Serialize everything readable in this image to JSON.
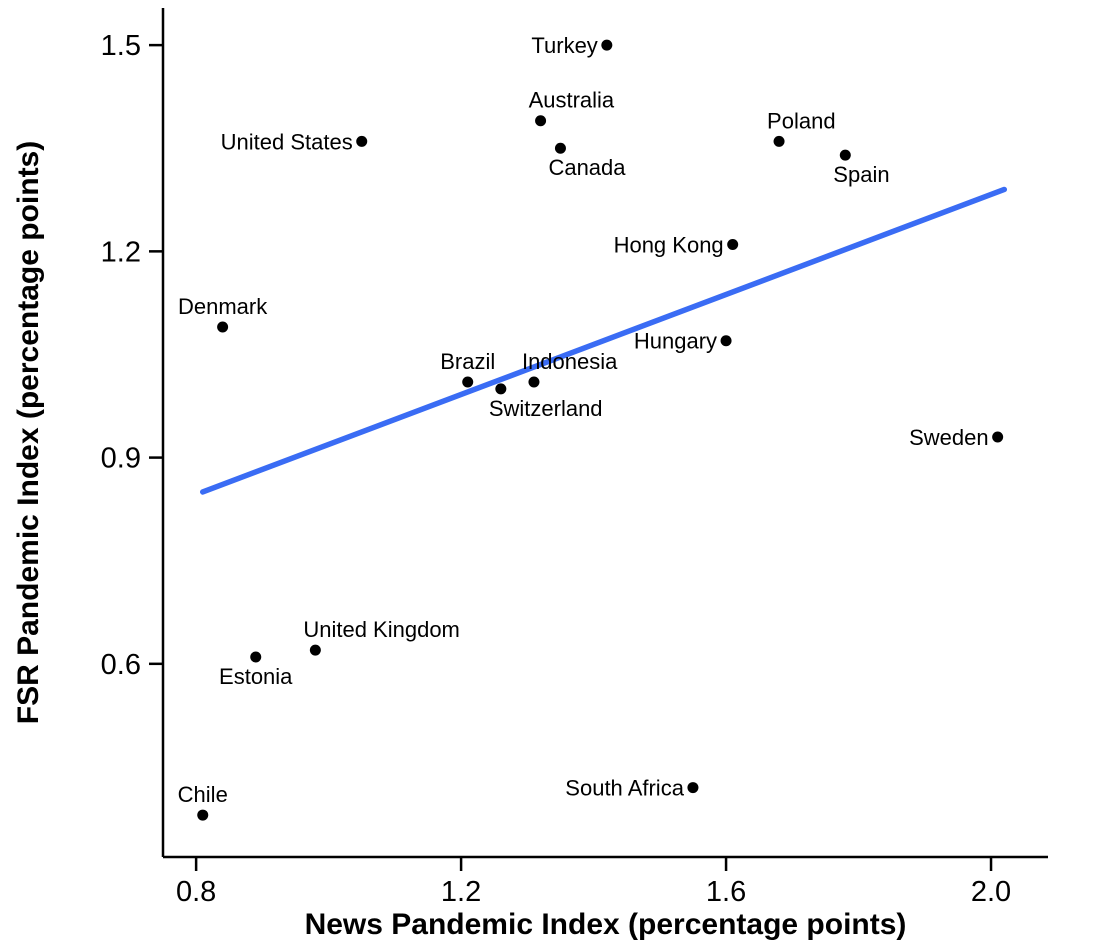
{
  "chart_data": {
    "type": "scatter",
    "title": "",
    "xlabel": "News Pandemic Index (percentage points)",
    "ylabel": "FSR Pandemic Index (percentage points)",
    "xlim": [
      0.75,
      2.086
    ],
    "ylim": [
      0.319,
      1.554
    ],
    "x_ticks": [
      {
        "value": 0.8,
        "label": "0.8"
      },
      {
        "value": 1.2,
        "label": "1.2"
      },
      {
        "value": 1.6,
        "label": "1.6"
      },
      {
        "value": 2.0,
        "label": "2.0"
      }
    ],
    "y_ticks": [
      {
        "value": 0.6,
        "label": "0.6"
      },
      {
        "value": 0.9,
        "label": "0.9"
      },
      {
        "value": 1.2,
        "label": "1.2"
      },
      {
        "value": 1.5,
        "label": "1.5"
      }
    ],
    "grid": false,
    "legend": "none",
    "point_color": "#000000",
    "axis_color": "#000000",
    "trendline": {
      "x1": 0.81,
      "y1": 0.85,
      "x2": 2.02,
      "y2": 1.29,
      "color": "#3a6cf4",
      "width": 5.5
    },
    "points": [
      {
        "label": "Turkey",
        "x": 1.42,
        "y": 1.5,
        "label_pos": "left"
      },
      {
        "label": "Australia",
        "x": 1.32,
        "y": 1.39,
        "label_pos": "above-right"
      },
      {
        "label": "Canada",
        "x": 1.35,
        "y": 1.35,
        "label_pos": "below-right"
      },
      {
        "label": "United States",
        "x": 1.05,
        "y": 1.36,
        "label_pos": "left"
      },
      {
        "label": "Poland",
        "x": 1.68,
        "y": 1.36,
        "label_pos": "above-right"
      },
      {
        "label": "Spain",
        "x": 1.78,
        "y": 1.34,
        "label_pos": "below-right"
      },
      {
        "label": "Hong Kong",
        "x": 1.61,
        "y": 1.21,
        "label_pos": "left"
      },
      {
        "label": "Denmark",
        "x": 0.84,
        "y": 1.09,
        "label_pos": "above"
      },
      {
        "label": "Hungary",
        "x": 1.6,
        "y": 1.07,
        "label_pos": "left"
      },
      {
        "label": "Brazil",
        "x": 1.21,
        "y": 1.01,
        "label_pos": "above"
      },
      {
        "label": "Indonesia",
        "x": 1.31,
        "y": 1.01,
        "label_pos": "above-right"
      },
      {
        "label": "Switzerland",
        "x": 1.26,
        "y": 1.0,
        "label_pos": "below-right"
      },
      {
        "label": "Sweden",
        "x": 2.01,
        "y": 0.93,
        "label_pos": "left"
      },
      {
        "label": "United Kingdom",
        "x": 0.98,
        "y": 0.62,
        "label_pos": "above-right"
      },
      {
        "label": "Estonia",
        "x": 0.89,
        "y": 0.61,
        "label_pos": "below"
      },
      {
        "label": "Chile",
        "x": 0.81,
        "y": 0.38,
        "label_pos": "above"
      },
      {
        "label": "South Africa",
        "x": 1.55,
        "y": 0.42,
        "label_pos": "left"
      }
    ]
  }
}
